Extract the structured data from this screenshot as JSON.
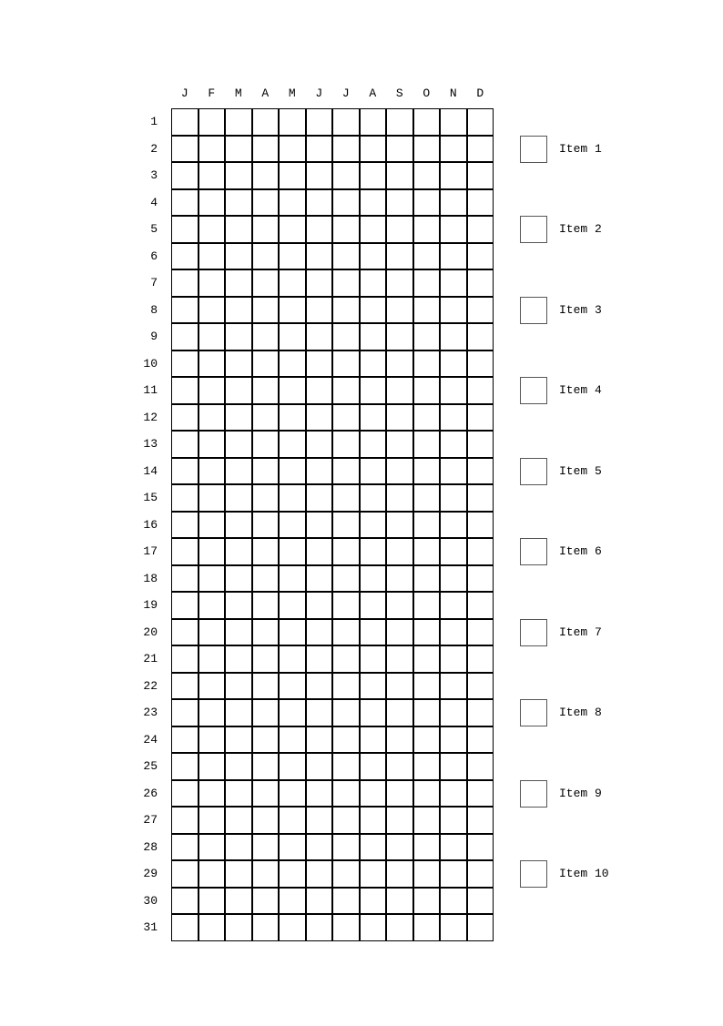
{
  "months": [
    "J",
    "F",
    "M",
    "A",
    "M",
    "J",
    "J",
    "A",
    "S",
    "O",
    "N",
    "D"
  ],
  "days": [
    "1",
    "2",
    "3",
    "4",
    "5",
    "6",
    "7",
    "8",
    "9",
    "10",
    "11",
    "12",
    "13",
    "14",
    "15",
    "16",
    "17",
    "18",
    "19",
    "20",
    "21",
    "22",
    "23",
    "24",
    "25",
    "26",
    "27",
    "28",
    "29",
    "30",
    "31"
  ],
  "legend": [
    {
      "label": "Item 1"
    },
    {
      "label": "Item 2"
    },
    {
      "label": "Item 3"
    },
    {
      "label": "Item 4"
    },
    {
      "label": "Item 5"
    },
    {
      "label": "Item 6"
    },
    {
      "label": "Item 7"
    },
    {
      "label": "Item 8"
    },
    {
      "label": "Item 9"
    },
    {
      "label": "Item 10"
    }
  ]
}
